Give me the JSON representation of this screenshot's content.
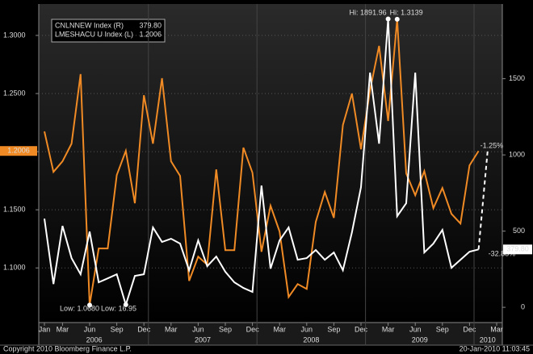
{
  "chart_data": {
    "type": "line",
    "categories": [
      "Jan",
      null,
      "Mar",
      null,
      null,
      "Jun",
      null,
      null,
      "Sep",
      null,
      null,
      "Dec",
      null,
      null,
      "Mar",
      null,
      null,
      "Jun",
      null,
      null,
      "Sep",
      null,
      null,
      "Dec",
      null,
      null,
      "Mar",
      null,
      null,
      "Jun",
      null,
      null,
      "Sep",
      null,
      null,
      "Dec",
      null,
      null,
      "Mar",
      null,
      null,
      "Jun",
      null,
      null,
      "Sep",
      null,
      null,
      "Dec",
      null,
      null,
      "Mar"
    ],
    "x_groups": [
      "2006",
      "2007",
      "2008",
      "2009",
      "2010"
    ],
    "series": [
      {
        "name": "LMESHACU U Index (L)",
        "color": "#f08a24",
        "axis": "y",
        "last_label": "1.2006",
        "values": [
          1.2174,
          1.1826,
          1.1917,
          1.2069,
          1.2667,
          1.068,
          1.1167,
          1.1167,
          1.1799,
          1.2007,
          1.1556,
          1.2486,
          1.2069,
          1.2632,
          1.1917,
          1.1792,
          1.0889,
          1.1097,
          1.1028,
          1.1847,
          1.1153,
          1.1153,
          1.2035,
          1.1819,
          1.1139,
          1.1535,
          1.1313,
          1.075,
          1.0861,
          1.0819,
          1.1396,
          1.1653,
          1.1431,
          1.2229,
          1.25,
          1.2021,
          1.2528,
          1.291,
          1.2264,
          1.3139,
          1.1813,
          1.1625,
          1.1833,
          1.1514,
          1.1688,
          1.1465,
          1.1382,
          1.1882,
          1.2006,
          null,
          null
        ]
      },
      {
        "name": "CNLNNEW Index (R)",
        "color": "#ffffff",
        "axis": "y2",
        "last_label": "379.80",
        "values": [
          582,
          153,
          534,
          323,
          217,
          497,
          164,
          190,
          217,
          16.95,
          206,
          217,
          524,
          429,
          450,
          418,
          243,
          439,
          270,
          333,
          233,
          164,
          127,
          101,
          799,
          254,
          439,
          524,
          312,
          323,
          376,
          312,
          360,
          243,
          492,
          788,
          1540,
          1074,
          1891.96,
          598,
          683,
          1540,
          360,
          418,
          508,
          259,
          312,
          365,
          379.8,
          null,
          null
        ]
      }
    ],
    "annotations": [
      "Hi: 1891.96",
      "Hi: 1.3139",
      "Low: 1.0680",
      "Low: 16.95",
      "-1.25%",
      "-32.88%"
    ],
    "ylim": [
      1.053,
      1.327
    ],
    "yticks": [
      {
        "value": 1.1,
        "label": "1.1000"
      },
      {
        "value": 1.15,
        "label": "1.1500"
      },
      {
        "value": 1.2,
        "label": "1.2000"
      },
      {
        "value": 1.25,
        "label": "1.2500"
      },
      {
        "value": 1.3,
        "label": "1.3000"
      }
    ],
    "y2lim": [
      -100,
      1990
    ],
    "y2ticks": [
      0,
      500,
      1000,
      1500
    ],
    "grid": true,
    "footer_left": "Copyright 2010 Bloomberg Finance L.P.",
    "footer_right": "20-Jan-2010 11:03:45"
  }
}
